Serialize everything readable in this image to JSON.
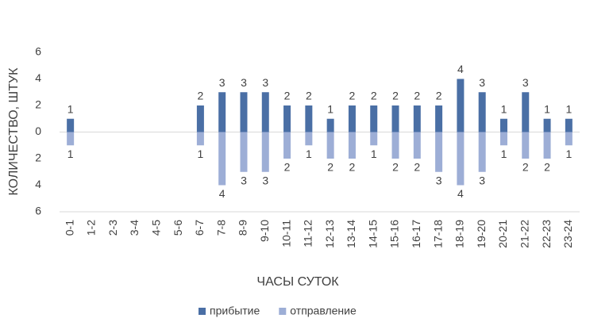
{
  "chart_data": {
    "type": "bar",
    "x_label": "ЧАСЫ СУТОК",
    "y_label": "КОЛИЧЕСТВО, ШТУК",
    "categories": [
      "0-1",
      "1-2",
      "2-3",
      "3-4",
      "4-5",
      "5-6",
      "6-7",
      "7-8",
      "8-9",
      "9-10",
      "10-11",
      "11-12",
      "12-13",
      "13-14",
      "14-15",
      "15-16",
      "16-17",
      "17-18",
      "18-19",
      "19-20",
      "20-21",
      "21-22",
      "22-23",
      "23-24"
    ],
    "series": [
      {
        "name": "прибытие",
        "color": "#4a6fa5",
        "values": [
          1,
          null,
          null,
          null,
          null,
          null,
          2,
          3,
          3,
          3,
          2,
          2,
          1,
          2,
          2,
          2,
          2,
          2,
          4,
          3,
          1,
          3,
          1,
          1
        ]
      },
      {
        "name": "отправление",
        "color": "#9daed6",
        "values": [
          -1,
          null,
          null,
          null,
          null,
          null,
          -1,
          -4,
          -3,
          -3,
          -2,
          -1,
          -2,
          -2,
          -1,
          -2,
          -2,
          -3,
          -4,
          -3,
          -1,
          -2,
          -2,
          -1
        ],
        "value_labels": [
          "1",
          null,
          null,
          null,
          null,
          null,
          "1",
          "4",
          "3",
          "3",
          "2",
          "1",
          "2",
          "2",
          "1",
          "2",
          "2",
          "3",
          "4",
          "3",
          "1",
          "2",
          "2",
          "1"
        ]
      }
    ],
    "ylim": [
      -6,
      6
    ],
    "yticks": [
      {
        "value": -6,
        "label": "6"
      },
      {
        "value": -4,
        "label": "4"
      },
      {
        "value": -2,
        "label": "2"
      },
      0,
      2,
      4,
      6
    ],
    "legend": "bottom"
  }
}
